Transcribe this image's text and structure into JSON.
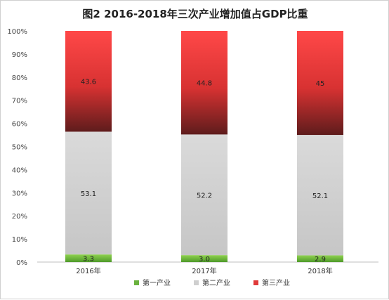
{
  "chart_data": {
    "type": "bar",
    "stacked": true,
    "percent": true,
    "title": "图2 2016-2018年三次产业增加值占GDP比重",
    "categories": [
      "2016年",
      "2017年",
      "2018年"
    ],
    "series": [
      {
        "name": "第一产业",
        "values": [
          3.3,
          3.0,
          2.9
        ],
        "labels": [
          "3.3",
          "3.0",
          "2.9"
        ],
        "color": "#6ab23e"
      },
      {
        "name": "第二产业",
        "values": [
          53.1,
          52.2,
          52.1
        ],
        "labels": [
          "53.1",
          "52.2",
          "52.1"
        ],
        "color": "#cfcfcf"
      },
      {
        "name": "第三产业",
        "values": [
          43.6,
          44.8,
          45
        ],
        "labels": [
          "43.6",
          "44.8",
          "45"
        ],
        "color": "#e03a3a"
      }
    ],
    "ylim": [
      0,
      100
    ],
    "yticks": [
      "0%",
      "10%",
      "20%",
      "30%",
      "40%",
      "50%",
      "60%",
      "70%",
      "80%",
      "90%",
      "100%"
    ],
    "grid": false,
    "legend": "bottom"
  }
}
